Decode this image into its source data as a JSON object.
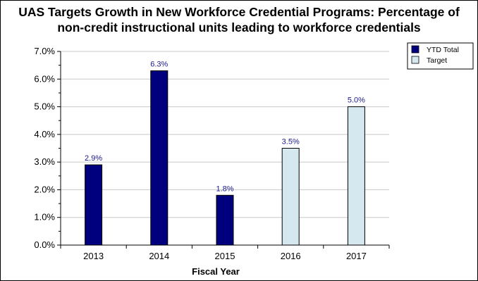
{
  "chart_data": {
    "type": "bar",
    "title_lines": [
      "UAS Targets Growth in New Workforce Credential Programs: Percentage of",
      "non-credit instructional units leading to workforce credentials"
    ],
    "xlabel": "Fiscal Year",
    "ylabel": "",
    "categories": [
      "2013",
      "2014",
      "2015",
      "2016",
      "2017"
    ],
    "values": [
      2.9,
      6.3,
      1.8,
      3.5,
      5.0
    ],
    "value_labels": [
      "2.9%",
      "6.3%",
      "1.8%",
      "3.5%",
      "5.0%"
    ],
    "bar_series": [
      "YTD Total",
      "YTD Total",
      "YTD Total",
      "Target",
      "Target"
    ],
    "series": [
      {
        "name": "YTD Total",
        "color": "#00007f"
      },
      {
        "name": "Target",
        "color": "#d5e8f0"
      }
    ],
    "ylim": [
      0,
      7
    ],
    "yticks": [
      0,
      1,
      2,
      3,
      4,
      5,
      6,
      7
    ],
    "ytick_labels": [
      "0.0%",
      "1.0%",
      "2.0%",
      "3.0%",
      "4.0%",
      "5.0%",
      "6.0%",
      "7.0%"
    ],
    "grid": true,
    "legend_position": "top-right"
  }
}
